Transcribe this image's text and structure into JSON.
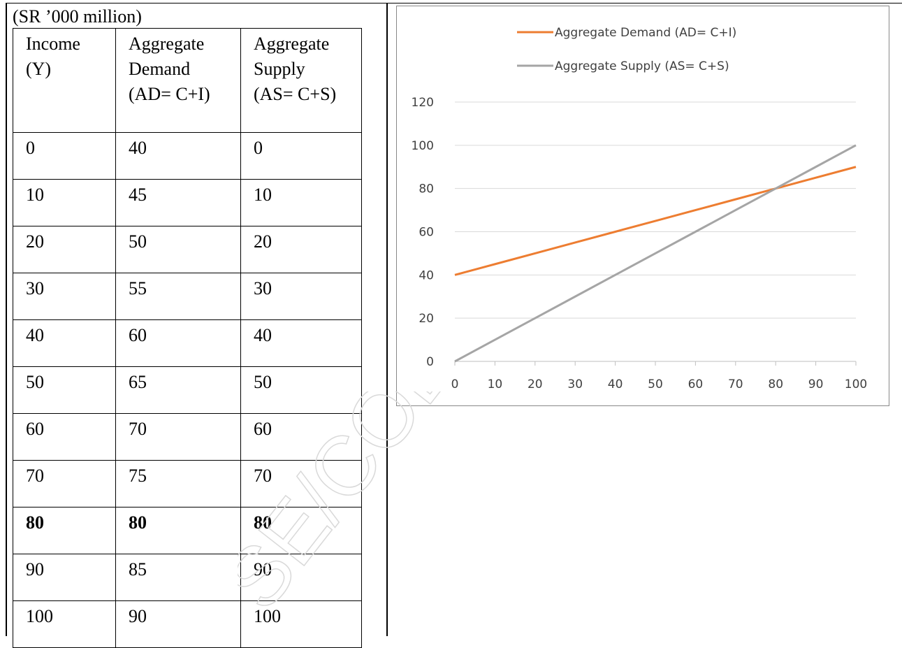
{
  "table": {
    "unit_note": "(SR ’000 million)",
    "headers": [
      [
        "Income",
        "(Y)"
      ],
      [
        "Aggregate",
        "Demand",
        "(AD= C+I)"
      ],
      [
        "Aggregate",
        "Supply",
        "(AS= C+S)"
      ]
    ],
    "rows": [
      [
        "0",
        "40",
        "0"
      ],
      [
        "10",
        "45",
        "10"
      ],
      [
        "20",
        "50",
        "20"
      ],
      [
        "30",
        "55",
        "30"
      ],
      [
        "40",
        "60",
        "40"
      ],
      [
        "50",
        "65",
        "50"
      ],
      [
        "60",
        "70",
        "60"
      ],
      [
        "70",
        "75",
        "70"
      ],
      [
        "80",
        "80",
        "80"
      ],
      [
        "90",
        "85",
        "90"
      ],
      [
        "100",
        "90",
        "100"
      ]
    ],
    "bold_row_index": 8
  },
  "chart_data": {
    "type": "line",
    "x": [
      0,
      10,
      20,
      30,
      40,
      50,
      60,
      70,
      80,
      90,
      100
    ],
    "series": [
      {
        "name": "Aggregate Demand (AD= C+I)",
        "values": [
          40,
          45,
          50,
          55,
          60,
          65,
          70,
          75,
          80,
          85,
          90
        ],
        "color": "#ED7D31"
      },
      {
        "name": "Aggregate Supply (AS= C+S)",
        "values": [
          0,
          10,
          20,
          30,
          40,
          50,
          60,
          70,
          80,
          90,
          100
        ],
        "color": "#A5A5A5"
      }
    ],
    "x_ticks": [
      "0",
      "10",
      "20",
      "30",
      "40",
      "50",
      "60",
      "70",
      "80",
      "90",
      "100"
    ],
    "y_ticks": [
      "0",
      "20",
      "40",
      "60",
      "80",
      "100",
      "120"
    ],
    "xlim": [
      0,
      100
    ],
    "ylim": [
      0,
      120
    ],
    "grid": "horizontal",
    "legend_position": "top"
  },
  "watermark": "SE/COL/SOL,"
}
